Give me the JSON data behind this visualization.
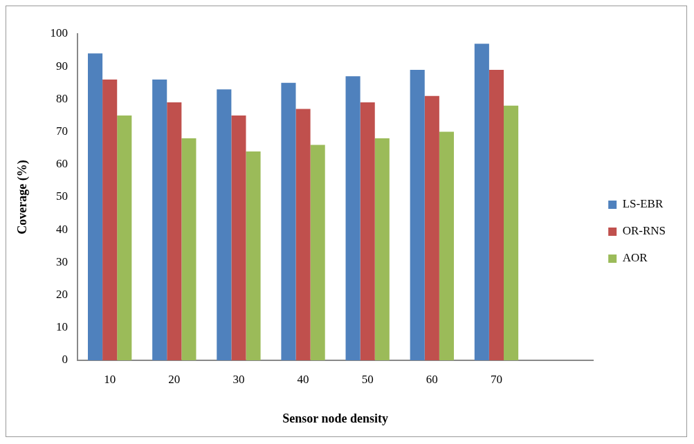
{
  "chart_data": {
    "type": "bar",
    "xlabel": "Sensor node density",
    "ylabel": "Coverage (%)",
    "categories": [
      "10",
      "20",
      "30",
      "40",
      "50",
      "60",
      "70",
      null
    ],
    "series": [
      {
        "name": "LS-EBR",
        "color": "#4f81bd",
        "values": [
          94,
          86,
          83,
          85,
          87,
          89,
          97,
          null
        ]
      },
      {
        "name": "OR-RNS",
        "color": "#c0504d",
        "values": [
          86,
          79,
          75,
          77,
          79,
          81,
          89,
          null
        ]
      },
      {
        "name": "AOR",
        "color": "#9bbb59",
        "values": [
          75,
          68,
          64,
          66,
          68,
          70,
          78,
          null
        ]
      }
    ],
    "ylim": [
      0,
      100
    ],
    "yticks": [
      0,
      10,
      20,
      30,
      40,
      50,
      60,
      70,
      80,
      90,
      100
    ],
    "grid": false,
    "legend": "right"
  }
}
